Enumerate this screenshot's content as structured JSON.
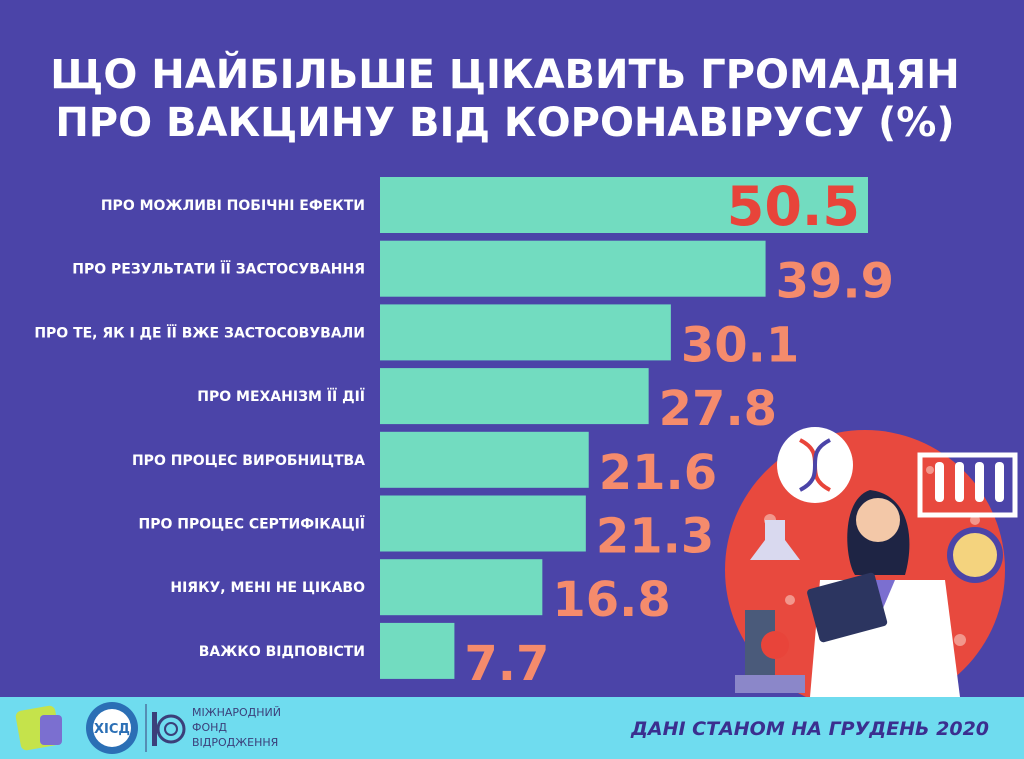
{
  "chart_data": {
    "type": "bar",
    "orientation": "horizontal",
    "title": [
      "ЩО НАЙБІЛЬШЕ ЦІКАВИТЬ ГРОМАДЯН",
      "ПРО ВАКЦИНУ ВІД КОРОНАВІРУСУ (%)"
    ],
    "categories": [
      "ПРО МОЖЛИВІ ПОБІЧНІ ЕФЕКТИ",
      "ПРО РЕЗУЛЬТАТИ ЇЇ ЗАСТОСУВАННЯ",
      "ПРО ТЕ, ЯК І ДЕ ЇЇ ВЖЕ ЗАСТОСОВУВАЛИ",
      "ПРО МЕХАНІЗМ ЇЇ ДІЇ",
      "ПРО ПРОЦЕС ВИРОБНИЦТВА",
      "ПРО ПРОЦЕС СЕРТИФІКАЦІЇ",
      "НІЯКУ, МЕНІ НЕ ЦІКАВО",
      "ВАЖКО ВІДПОВІСТИ"
    ],
    "values": [
      50.5,
      39.9,
      30.1,
      27.8,
      21.6,
      21.3,
      16.8,
      7.7
    ],
    "color": "#72dcc0",
    "label_color": "#f58b6c",
    "highlight_label_color": "#e8443a"
  },
  "footer": {
    "note": "ДАНІ СТАНОМ НА ГРУДЕНЬ 2020",
    "logo": "ХІСД",
    "fund": [
      "МІЖНАРОДНИЙ",
      "ФОНД",
      "ВІДРОДЖЕННЯ"
    ]
  }
}
